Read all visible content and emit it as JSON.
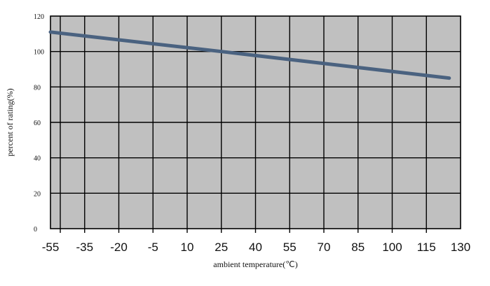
{
  "chart_data": {
    "type": "line",
    "xlabel": "ambient temperature(℃)",
    "ylabel": "percent of rating(%)",
    "x_ticks": [
      -55,
      -35,
      -20,
      -5,
      10,
      25,
      40,
      55,
      70,
      85,
      100,
      115,
      130
    ],
    "y_ticks": [
      0,
      20,
      40,
      60,
      80,
      100,
      120
    ],
    "xlim": [
      -55,
      130
    ],
    "ylim": [
      0,
      120
    ],
    "grid": true,
    "plot_background": "#c0c0c0",
    "series": [
      {
        "color": "#4a6280",
        "points": [
          {
            "x": -55,
            "y": 111
          },
          {
            "x": 25,
            "y": 100
          },
          {
            "x": 125,
            "y": 85
          }
        ]
      }
    ]
  }
}
